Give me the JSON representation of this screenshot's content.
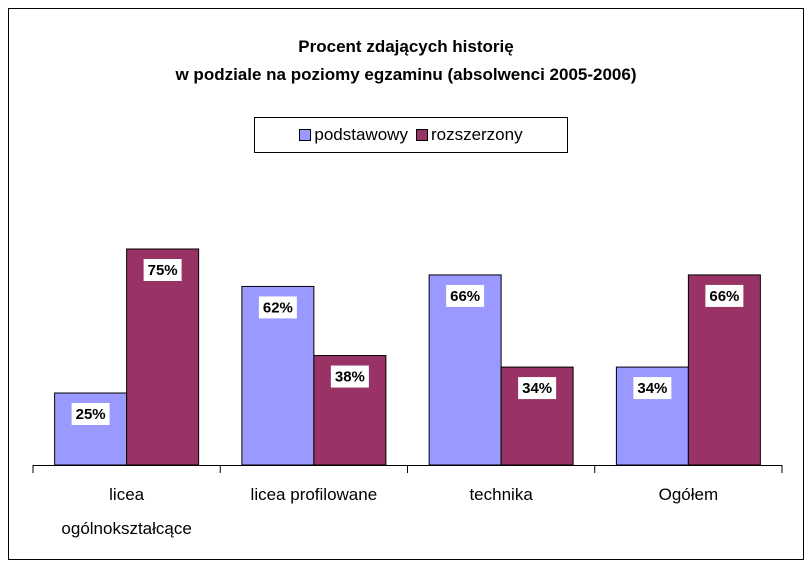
{
  "chart_data": {
    "type": "bar",
    "title": "Procent zdających historię\nw podziale na poziomy egzaminu (absolwenci 2005-2006)",
    "categories": [
      "licea ogólnokształcące",
      "licea profilowane",
      "technika",
      "Ogółem"
    ],
    "series": [
      {
        "name": "podstawowy",
        "color": "#9999ff",
        "values": [
          25,
          62,
          66,
          34
        ],
        "value_labels": [
          "25%",
          "62%",
          "66%",
          "34%"
        ]
      },
      {
        "name": "rozszerzony",
        "color": "#993366",
        "values": [
          75,
          38,
          34,
          66
        ],
        "value_labels": [
          "75%",
          "38%",
          "34%",
          "66%"
        ]
      }
    ],
    "ylim": [
      0,
      100
    ],
    "legend": "top"
  }
}
